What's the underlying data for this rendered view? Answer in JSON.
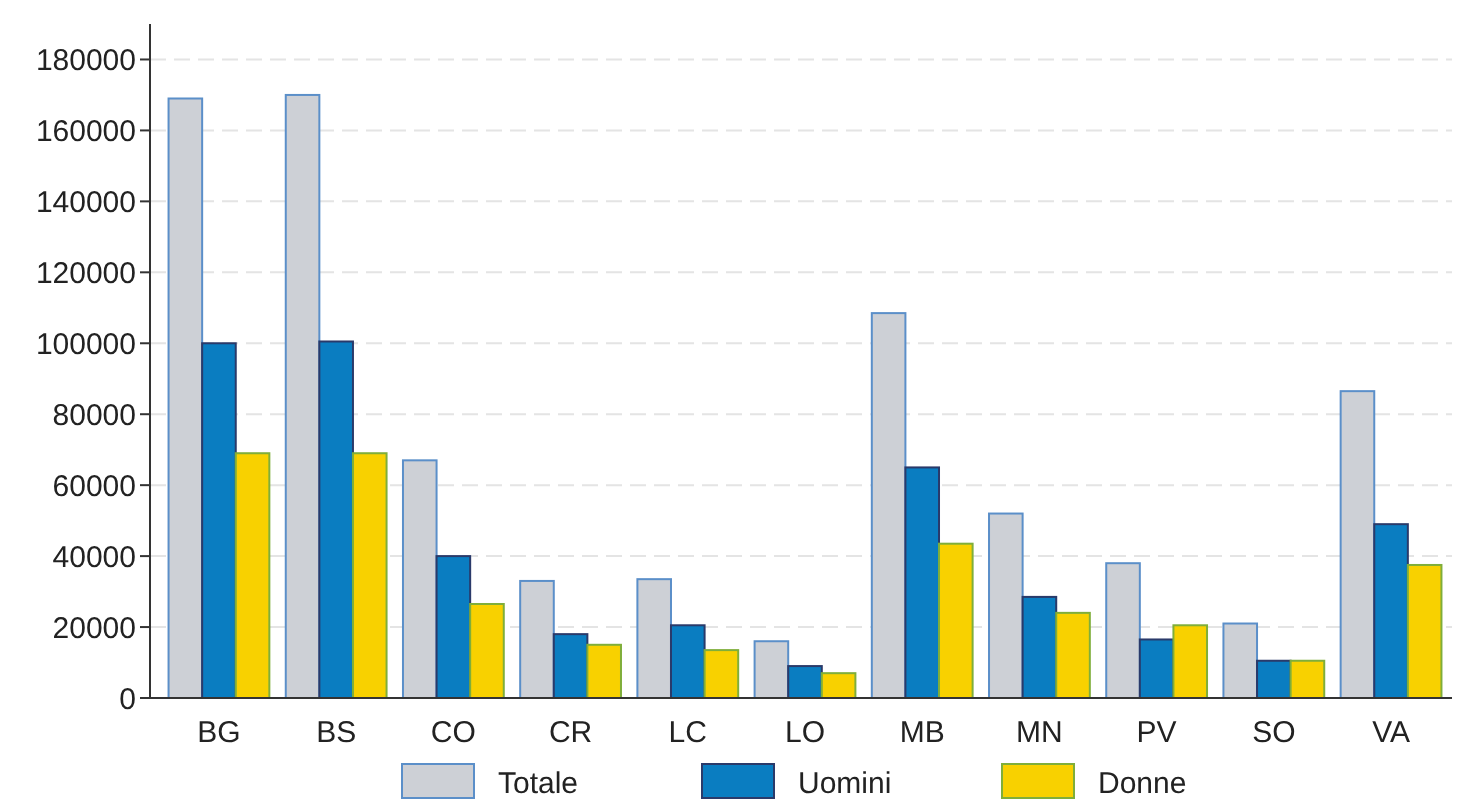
{
  "chart_data": {
    "type": "bar",
    "categories": [
      "BG",
      "BS",
      "CO",
      "CR",
      "LC",
      "LO",
      "MB",
      "MN",
      "PV",
      "SO",
      "VA"
    ],
    "series": [
      {
        "name": "Totale",
        "color": "#cdd0d6",
        "values": [
          169000,
          170000,
          67000,
          33000,
          33500,
          16000,
          108500,
          52000,
          38000,
          21000,
          86500
        ]
      },
      {
        "name": "Uomini",
        "color": "#0a7dc1",
        "values": [
          100000,
          100500,
          40000,
          18000,
          20500,
          9000,
          65000,
          28500,
          16500,
          10500,
          49000
        ]
      },
      {
        "name": "Donne",
        "color": "#f8d100",
        "values": [
          69000,
          69000,
          26500,
          15000,
          13500,
          7000,
          43500,
          24000,
          20500,
          10500,
          37500
        ]
      }
    ],
    "ylim": [
      0,
      190000
    ],
    "yticks": [
      0,
      20000,
      40000,
      60000,
      80000,
      100000,
      120000,
      140000,
      160000,
      180000
    ],
    "grid": "y",
    "legend": "bottom"
  }
}
